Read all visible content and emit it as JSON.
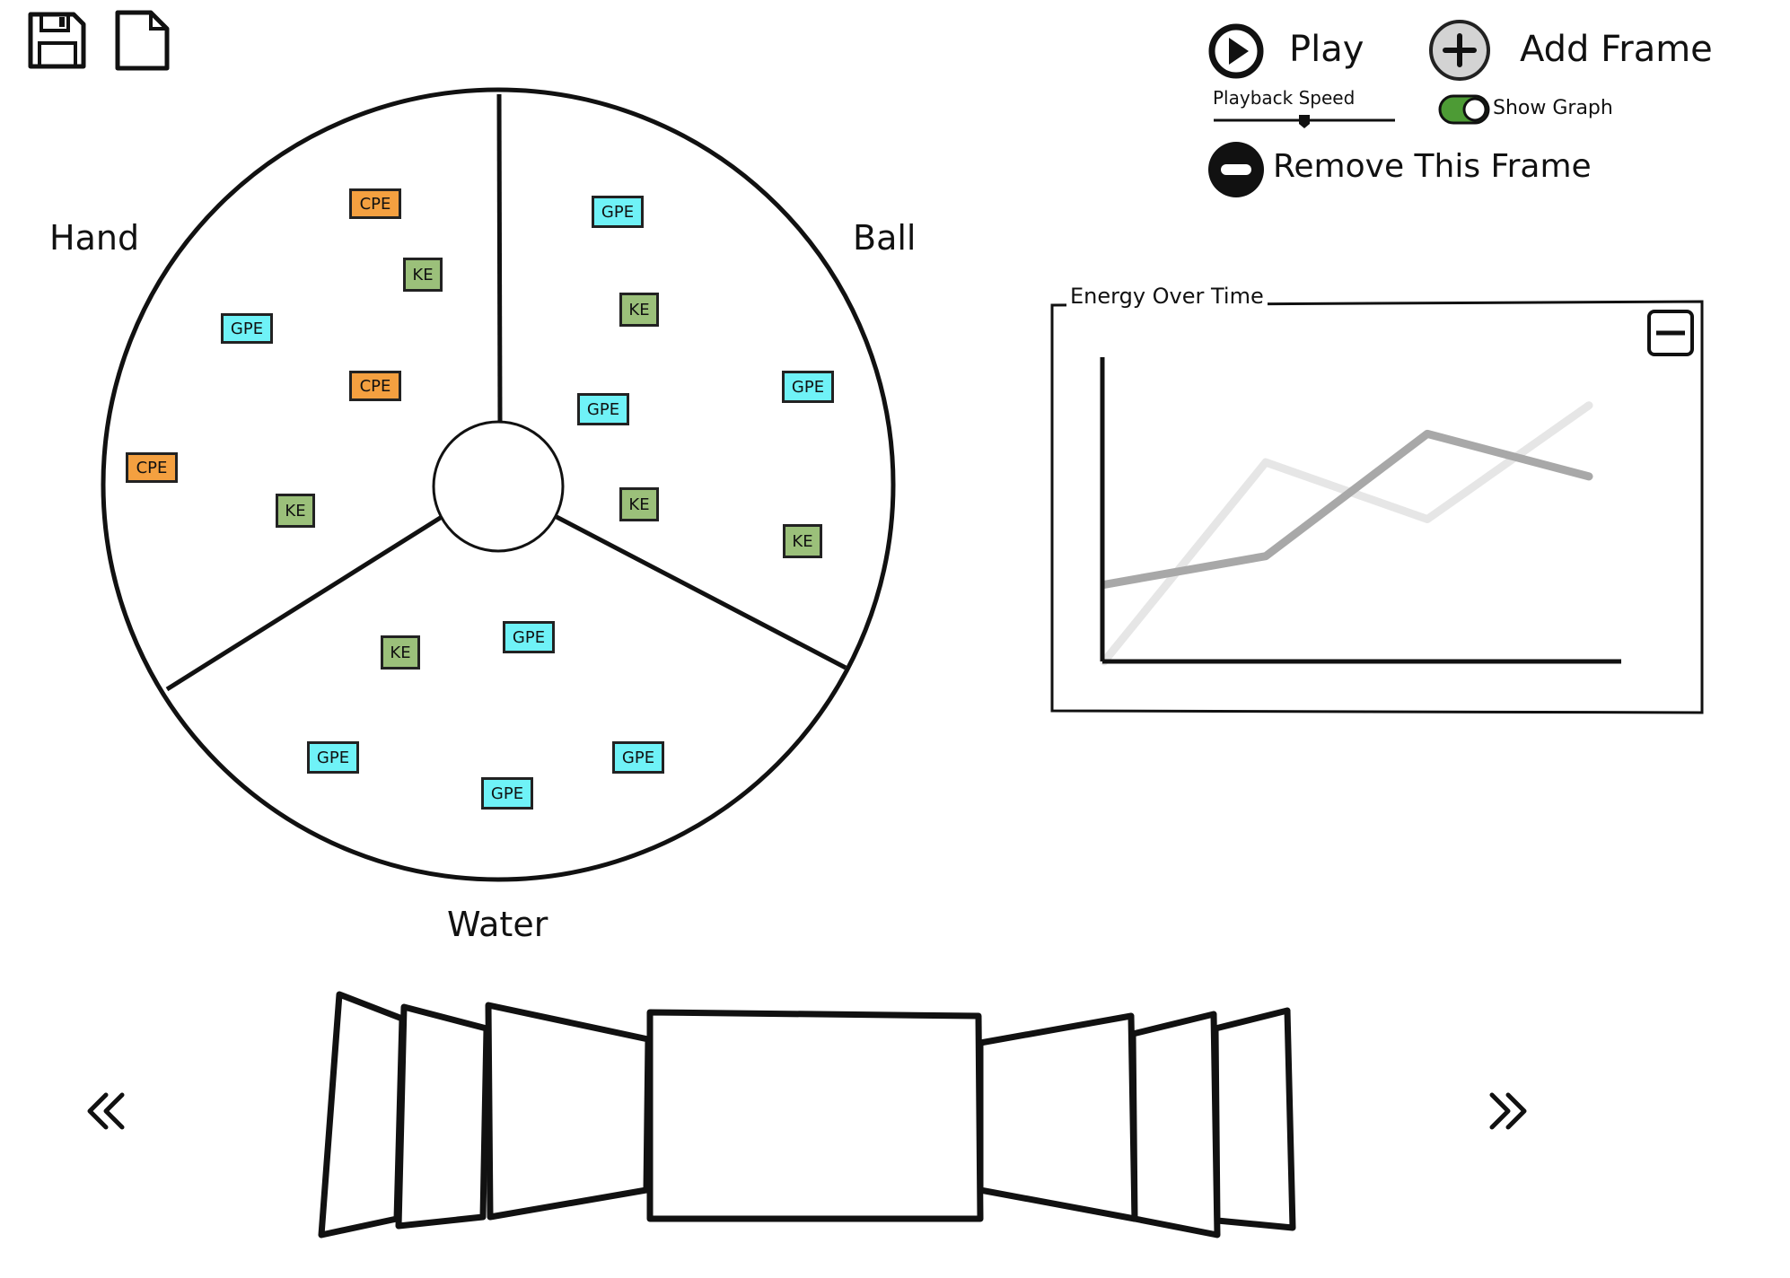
{
  "toolbar": {
    "save_icon": "floppy-disk-icon",
    "new_icon": "new-document-icon"
  },
  "controls": {
    "play_label": "Play",
    "add_frame_label": "Add Frame",
    "playback_speed_label": "Playback Speed",
    "playback_speed_value": 0.5,
    "show_graph_label": "Show Graph",
    "show_graph_on": true,
    "remove_frame_label": "Remove This Frame"
  },
  "wheel": {
    "regions": {
      "hand": "Hand",
      "ball": "Ball",
      "water": "Water"
    },
    "chips": [
      {
        "region": "hand",
        "type": "CPE",
        "label": "CPE"
      },
      {
        "region": "hand",
        "type": "KE",
        "label": "KE"
      },
      {
        "region": "hand",
        "type": "GPE",
        "label": "GPE"
      },
      {
        "region": "hand",
        "type": "CPE",
        "label": "CPE"
      },
      {
        "region": "hand",
        "type": "CPE",
        "label": "CPE"
      },
      {
        "region": "hand",
        "type": "KE",
        "label": "KE"
      },
      {
        "region": "ball",
        "type": "GPE",
        "label": "GPE"
      },
      {
        "region": "ball",
        "type": "KE",
        "label": "KE"
      },
      {
        "region": "ball",
        "type": "GPE",
        "label": "GPE"
      },
      {
        "region": "ball",
        "type": "GPE",
        "label": "GPE"
      },
      {
        "region": "ball",
        "type": "KE",
        "label": "KE"
      },
      {
        "region": "ball",
        "type": "KE",
        "label": "KE"
      },
      {
        "region": "water",
        "type": "KE",
        "label": "KE"
      },
      {
        "region": "water",
        "type": "GPE",
        "label": "GPE"
      },
      {
        "region": "water",
        "type": "GPE",
        "label": "GPE"
      },
      {
        "region": "water",
        "type": "GPE",
        "label": "GPE"
      },
      {
        "region": "water",
        "type": "GPE",
        "label": "GPE"
      }
    ],
    "chip_colors": {
      "CPE": "#f4a040",
      "KE": "#9bc07a",
      "GPE": "#6ff2f7"
    }
  },
  "graph": {
    "title": "Energy Over Time",
    "minimize_icon": "minimize-icon",
    "chart_data": {
      "type": "line",
      "title": "Energy Over Time",
      "x": [
        0,
        1,
        2,
        3
      ],
      "series": [
        {
          "values": [
            0.27,
            0.37,
            0.8,
            0.65
          ],
          "color": "#a8a8a8"
        },
        {
          "values": [
            0.0,
            0.7,
            0.5,
            0.9
          ],
          "color": "#e6e6e6"
        }
      ],
      "ylim": [
        0,
        1
      ],
      "grid": false
    }
  },
  "timeline": {
    "prev_icon": "double-chevron-left-icon",
    "next_icon": "double-chevron-right-icon",
    "frame_count": 7,
    "selected_frame": 3
  }
}
